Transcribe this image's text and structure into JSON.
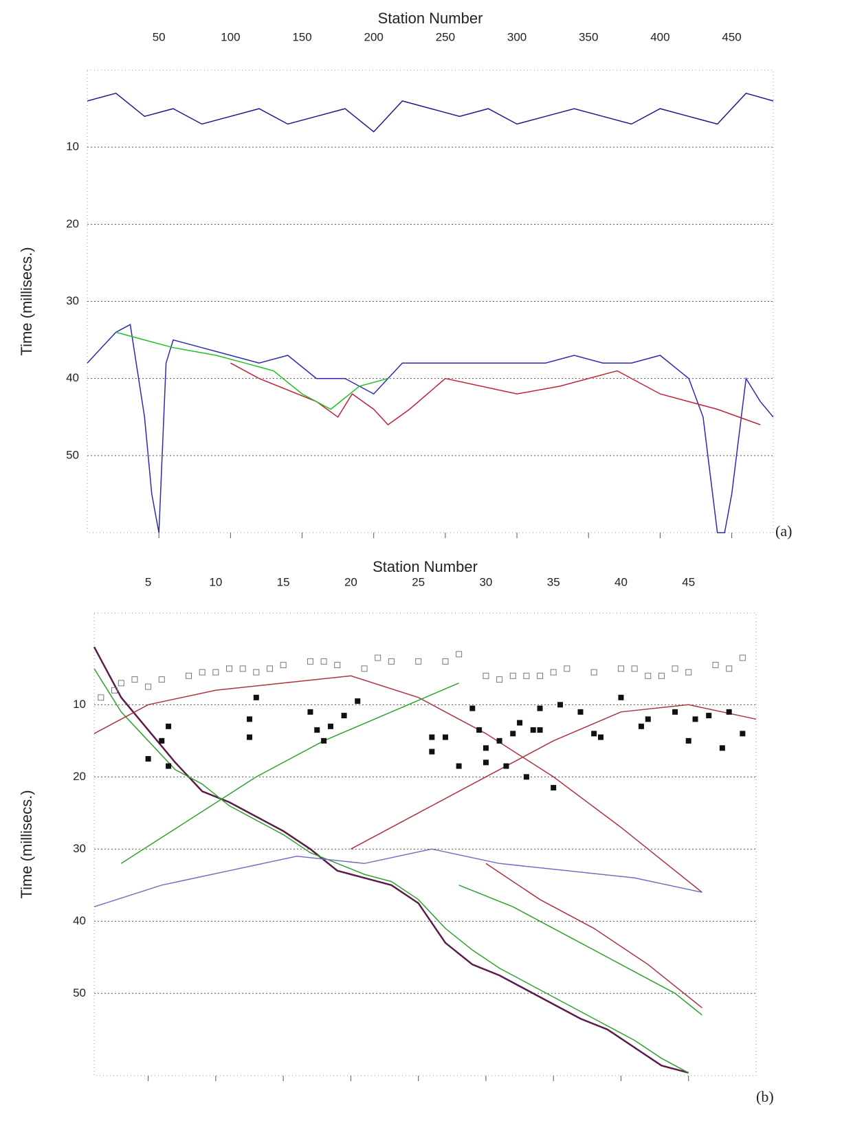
{
  "chart_data": [
    {
      "type": "line",
      "title": "Station Number",
      "y_label": "Time (millisecs.)",
      "panel_label": "(a)",
      "xlim": [
        0,
        479
      ],
      "ylim": [
        0,
        60
      ],
      "y_inverted": true,
      "grid": true,
      "xticks": [
        50,
        100,
        150,
        200,
        250,
        300,
        350,
        400,
        450
      ],
      "yticks": [
        10,
        20,
        30,
        40,
        50
      ],
      "series": [
        {
          "style": "line",
          "color": "#2a2ab0",
          "x": [
            0,
            10,
            20,
            30,
            40,
            45,
            50,
            55,
            60,
            80,
            100,
            120,
            140,
            160,
            180,
            200,
            220,
            240,
            260,
            280,
            300,
            320,
            340,
            360,
            380,
            400,
            420,
            430,
            440,
            445,
            450,
            460,
            470,
            479
          ],
          "values": [
            38,
            36,
            34,
            33,
            45,
            55,
            60,
            38,
            35,
            36,
            37,
            38,
            37,
            40,
            40,
            42,
            38,
            38,
            38,
            38,
            38,
            38,
            37,
            38,
            38,
            37,
            40,
            45,
            60,
            60,
            55,
            40,
            43,
            45
          ]
        },
        {
          "style": "line",
          "color": "#1a1a8a",
          "x": [
            0,
            20,
            40,
            60,
            80,
            100,
            120,
            140,
            160,
            180,
            200,
            220,
            240,
            260,
            280,
            300,
            320,
            340,
            360,
            380,
            400,
            420,
            440,
            460,
            479
          ],
          "values": [
            4,
            3,
            6,
            5,
            7,
            6,
            5,
            7,
            6,
            5,
            8,
            4,
            5,
            6,
            5,
            7,
            6,
            5,
            6,
            7,
            5,
            6,
            7,
            3,
            4
          ]
        },
        {
          "style": "line",
          "color": "#c0203a",
          "x": [
            100,
            120,
            160,
            175,
            185,
            200,
            210,
            225,
            250,
            300,
            330,
            370,
            400,
            440,
            470
          ],
          "values": [
            38,
            40,
            43,
            45,
            42,
            44,
            46,
            44,
            40,
            42,
            41,
            39,
            42,
            44,
            46
          ]
        },
        {
          "style": "line",
          "color": "#20c020",
          "x": [
            20,
            40,
            60,
            90,
            110,
            130,
            150,
            170,
            190,
            210
          ],
          "values": [
            34,
            35,
            36,
            37,
            38,
            39,
            42,
            44,
            41,
            40
          ]
        }
      ]
    },
    {
      "type": "line",
      "title": "Station Number",
      "y_label": "Time (millisecs.)",
      "panel_label": "(b)",
      "xlim": [
        1,
        50
      ],
      "ylim": [
        -2.7,
        61.4
      ],
      "y_inverted": true,
      "grid": true,
      "xticks": [
        5,
        10,
        15,
        20,
        25,
        30,
        35,
        40,
        45
      ],
      "yticks": [
        10,
        20,
        30,
        40,
        50
      ],
      "series": [
        {
          "style": "line",
          "color": "#5a1a4a",
          "x": [
            1,
            3,
            5,
            7,
            9,
            11,
            13,
            15,
            17,
            19,
            21,
            23,
            25,
            27,
            29,
            31,
            33,
            35,
            37,
            39,
            41,
            43,
            45
          ],
          "values": [
            2,
            9,
            13.5,
            18,
            22,
            23.5,
            25.5,
            27.5,
            30,
            33,
            34,
            35,
            37.5,
            43,
            46,
            47.5,
            49.5,
            51.5,
            53.5,
            55,
            57.5,
            60,
            61
          ]
        },
        {
          "style": "line",
          "color": "#30a030",
          "x": [
            1,
            3,
            5,
            7,
            9,
            11,
            13,
            15,
            17,
            19,
            21,
            23,
            25,
            27,
            29,
            31,
            33,
            35,
            37,
            39,
            41,
            43,
            45
          ],
          "values": [
            5,
            11,
            15,
            19,
            21,
            24,
            26,
            28,
            30.5,
            32,
            33.5,
            34.5,
            37,
            41,
            44,
            46.5,
            48.5,
            50.5,
            52.5,
            54.5,
            56.5,
            59,
            61
          ]
        },
        {
          "style": "line",
          "color": "#b03040",
          "x": [
            1,
            5,
            10,
            15,
            20,
            25,
            30,
            35,
            40,
            46
          ],
          "values": [
            14,
            10,
            8,
            7,
            6,
            9,
            14,
            20,
            27,
            36
          ]
        },
        {
          "style": "line",
          "color": "#b03040",
          "x": [
            20,
            25,
            30,
            35,
            40,
            45,
            50
          ],
          "values": [
            30,
            25,
            20,
            15,
            11,
            10,
            12
          ]
        },
        {
          "style": "line",
          "color": "#b03040",
          "x": [
            30,
            34,
            38,
            42,
            46
          ],
          "values": [
            32,
            37,
            41,
            46,
            52
          ]
        },
        {
          "style": "line",
          "color": "#30a030",
          "x": [
            3,
            8,
            13,
            18,
            23,
            28
          ],
          "values": [
            32,
            26,
            20,
            15,
            11,
            7
          ]
        },
        {
          "style": "line",
          "color": "#30a030",
          "x": [
            28,
            32,
            36,
            40,
            44,
            46
          ],
          "values": [
            35,
            38,
            42,
            46,
            50,
            53
          ]
        },
        {
          "style": "line",
          "color": "#7070c0",
          "x": [
            1,
            6,
            11,
            16,
            21,
            26,
            31,
            36,
            41,
            46
          ],
          "values": [
            38,
            35,
            33,
            31,
            32,
            30,
            32,
            33,
            34,
            36
          ]
        },
        {
          "style": "dots",
          "color": "#111111",
          "x": [
            5,
            6,
            6.5,
            6.5,
            13,
            12.5,
            12.5,
            17,
            17.5,
            18,
            18.5,
            19.5,
            20.5,
            26,
            26,
            27,
            28,
            29,
            29.5,
            30,
            30,
            31,
            31.5,
            32,
            32.5,
            33.5,
            33,
            34,
            34,
            35,
            35.5,
            37,
            38,
            38.5,
            40,
            41.5,
            42,
            44,
            45,
            45.5,
            46.5,
            47.5,
            48,
            49
          ],
          "values": [
            17.5,
            15,
            13,
            18.5,
            9,
            12,
            14.5,
            11,
            13.5,
            15,
            13,
            11.5,
            9.5,
            14.5,
            16.5,
            14.5,
            18.5,
            10.5,
            13.5,
            16,
            18,
            15,
            18.5,
            14,
            12.5,
            13.5,
            20,
            10.5,
            13.5,
            21.5,
            10,
            11,
            14,
            14.5,
            9,
            13,
            12,
            11,
            15,
            12,
            11.5,
            16,
            11,
            14
          ]
        },
        {
          "style": "squares",
          "color": "#777777",
          "x": [
            1.5,
            2.5,
            3,
            4,
            5,
            6,
            8,
            9,
            10,
            11,
            12,
            13,
            14,
            15,
            17,
            18,
            19,
            21,
            22,
            23,
            25,
            27,
            28,
            30,
            31,
            32,
            33,
            34,
            35,
            36,
            38,
            40,
            41,
            42,
            43,
            44,
            45,
            47,
            48,
            49
          ],
          "values": [
            9,
            8,
            7,
            6.5,
            7.5,
            6.5,
            6,
            5.5,
            5.5,
            5,
            5,
            5.5,
            5,
            4.5,
            4,
            4,
            4.5,
            5,
            3.5,
            4,
            4,
            4,
            3,
            6,
            6.5,
            6,
            6,
            6,
            5.5,
            5,
            5.5,
            5,
            5,
            6,
            6,
            5,
            5.5,
            4.5,
            5,
            3.5
          ]
        }
      ]
    }
  ]
}
